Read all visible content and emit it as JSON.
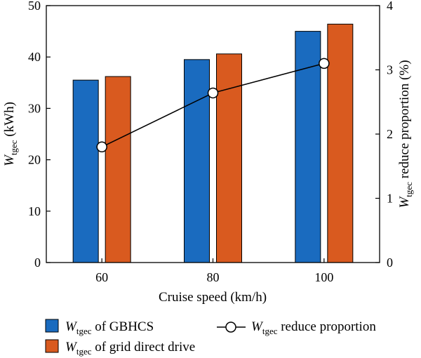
{
  "chart_data": {
    "type": "bar",
    "xlabel": "Cruise speed (km/h)",
    "ylabel": {
      "main": "W",
      "sub": "tgec",
      "rest": " (kWh)"
    },
    "y2label": {
      "main": "W",
      "sub": "tgec",
      "rest": " reduce proportion (%)"
    },
    "categories": [
      "60",
      "80",
      "100"
    ],
    "ylim": [
      0,
      50
    ],
    "yticks": [
      "0",
      "10",
      "20",
      "30",
      "40",
      "50"
    ],
    "y2lim": [
      0,
      4
    ],
    "y2ticks": [
      "0",
      "1",
      "2",
      "3",
      "4"
    ],
    "series": [
      {
        "name": {
          "main": "W",
          "sub": "tgec",
          "rest": " of GBHCS"
        },
        "type": "bar",
        "axis": "left",
        "color": "#1a6bbf",
        "values": [
          35.5,
          39.5,
          45.0
        ]
      },
      {
        "name": {
          "main": "W",
          "sub": "tgec",
          "rest": " of grid direct drive"
        },
        "type": "bar",
        "axis": "left",
        "color": "#d95a1f",
        "values": [
          36.2,
          40.6,
          46.4
        ]
      },
      {
        "name": {
          "main": "W",
          "sub": "tgec",
          "rest": " reduce proportion"
        },
        "type": "line",
        "marker": "open-circle",
        "axis": "right",
        "color": "#000000",
        "values": [
          1.8,
          2.64,
          3.1
        ]
      }
    ],
    "grid": false,
    "legend_position": "bottom"
  }
}
